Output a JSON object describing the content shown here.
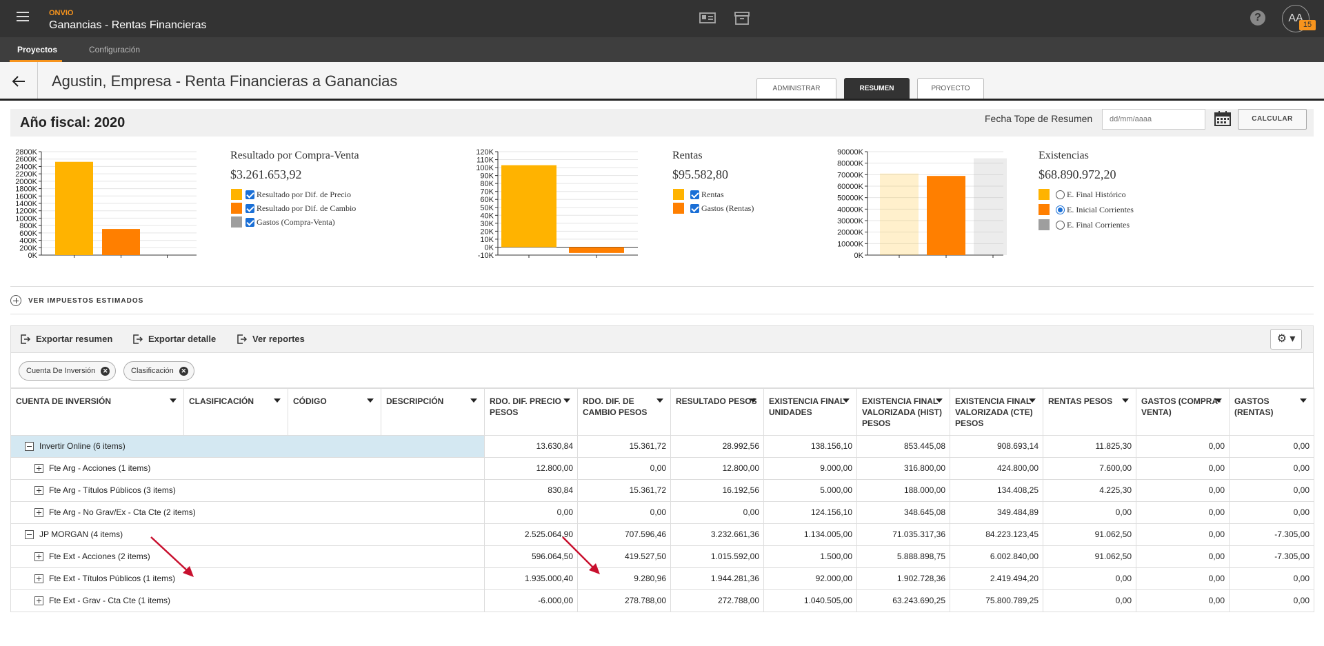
{
  "app": {
    "brand": "ONVIO",
    "title": "Ganancias - Rentas Financieras",
    "badge": "15",
    "avatar": "AA",
    "help": "?"
  },
  "nav": {
    "items": [
      "Proyectos",
      "Configuración"
    ]
  },
  "header": {
    "title": "Agustin, Empresa - Renta Financieras a Ganancias",
    "tabs": [
      "ADMINISTRAR",
      "RESUMEN",
      "PROYECTO"
    ],
    "active_tab": "RESUMEN"
  },
  "fiscal": {
    "label": "Año fiscal: 2020",
    "fecha_label": "Fecha Tope de Resumen",
    "fecha_placeholder": "dd/mm/aaaa",
    "calc": "CALCULAR"
  },
  "colors": {
    "yellow": "#FFB300",
    "orange": "#FF7F00",
    "gray": "#9E9E9E",
    "accent": "#F7941D",
    "group_bg": "#D4E8F2"
  },
  "chart_data": [
    {
      "type": "bar",
      "categories": [
        "Resultado por Dif. de Precio",
        "Resultado por Dif. de Cambio",
        "Gastos (Compra-Venta)"
      ],
      "values": [
        2525065,
        708000,
        0
      ],
      "ylim": [
        0,
        2800000
      ],
      "yticks": [
        "0K",
        "200K",
        "400K",
        "600K",
        "800K",
        "1000K",
        "1200K",
        "1400K",
        "1600K",
        "1800K",
        "2000K",
        "2200K",
        "2400K",
        "2600K",
        "2800K"
      ]
    },
    {
      "type": "bar",
      "categories": [
        "Rentas",
        "Gastos (Rentas)"
      ],
      "values": [
        103000,
        -7305
      ],
      "ylim": [
        -10000,
        120000
      ],
      "yticks": [
        "-10K",
        "0K",
        "10K",
        "20K",
        "30K",
        "40K",
        "50K",
        "60K",
        "70K",
        "80K",
        "90K",
        "100K",
        "110K",
        "120K"
      ]
    },
    {
      "type": "bar",
      "categories": [
        "E. Final Histórico",
        "E. Inicial Corrientes",
        "E. Final Corrientes"
      ],
      "values": [
        71000000,
        68900000,
        84200000
      ],
      "ylim": [
        0,
        90000000
      ],
      "yticks": [
        "0K",
        "10000K",
        "20000K",
        "30000K",
        "40000K",
        "50000K",
        "60000K",
        "70000K",
        "80000K",
        "90000K"
      ],
      "faded": [
        true,
        false,
        true
      ]
    }
  ],
  "summaries": [
    {
      "title": "Resultado por Compra-Venta",
      "value": "$3.261.653,92",
      "legend": [
        {
          "label": "Resultado por Dif. de Precio",
          "color": "#FFB300",
          "checked": true
        },
        {
          "label": "Resultado por Dif. de Cambio",
          "color": "#FF7F00",
          "checked": true
        },
        {
          "label": "Gastos (Compra-Venta)",
          "color": "#9E9E9E",
          "checked": true
        }
      ]
    },
    {
      "title": "Rentas",
      "value": "$95.582,80",
      "legend": [
        {
          "label": "Rentas",
          "color": "#FFB300",
          "checked": true
        },
        {
          "label": "Gastos (Rentas)",
          "color": "#FF7F00",
          "checked": true
        }
      ]
    },
    {
      "title": "Existencias",
      "value": "$68.890.972,20",
      "legend": [
        {
          "label": "E. Final Histórico",
          "color": "#FFB300",
          "selected": false
        },
        {
          "label": "E. Inicial Corrientes",
          "color": "#FF7F00",
          "selected": true
        },
        {
          "label": "E. Final Corrientes",
          "color": "#9E9E9E",
          "selected": false
        }
      ]
    }
  ],
  "impuestos": "VER IMPUESTOS ESTIMADOS",
  "toolbar": {
    "export_summary": "Exportar resumen",
    "export_detail": "Exportar detalle",
    "reports": "Ver reportes",
    "gear": "⚙ ▾"
  },
  "chips": [
    "Cuenta De Inversión",
    "Clasificación"
  ],
  "chip_close": "✕",
  "table": {
    "columns": [
      "CUENTA DE INVERSIÓN",
      "CLASIFICACIÓN",
      "CÓDIGO",
      "DESCRIPCIÓN",
      "RDO. DIF. PRECIO PESOS",
      "RDO. DIF. DE CAMBIO PESOS",
      "RESULTADO PESOS",
      "EXISTENCIA FINAL UNIDADES",
      "EXISTENCIA FINAL VALORIZADA (HIST) PESOS",
      "EXISTENCIA FINAL VALORIZADA (CTE) PESOS",
      "RENTAS PESOS",
      "GASTOS (COMPRA-VENTA)",
      "GASTOS (RENTAS)"
    ],
    "rows": [
      {
        "label": "Invertir Online (6 items)",
        "level": 0,
        "expanded": true,
        "values": [
          "13.630,84",
          "15.361,72",
          "28.992,56",
          "138.156,10",
          "853.445,08",
          "908.693,14",
          "11.825,30",
          "0,00",
          "0,00"
        ]
      },
      {
        "label": "Fte Arg - Acciones (1 items)",
        "level": 1,
        "expanded": false,
        "values": [
          "12.800,00",
          "0,00",
          "12.800,00",
          "9.000,00",
          "316.800,00",
          "424.800,00",
          "7.600,00",
          "0,00",
          "0,00"
        ]
      },
      {
        "label": "Fte Arg - Títulos Públicos (3 items)",
        "level": 1,
        "expanded": false,
        "values": [
          "830,84",
          "15.361,72",
          "16.192,56",
          "5.000,00",
          "188.000,00",
          "134.408,25",
          "4.225,30",
          "0,00",
          "0,00"
        ]
      },
      {
        "label": "Fte Arg - No Grav/Ex - Cta Cte (2 items)",
        "level": 1,
        "expanded": false,
        "values": [
          "0,00",
          "0,00",
          "0,00",
          "124.156,10",
          "348.645,08",
          "349.484,89",
          "0,00",
          "0,00",
          "0,00"
        ]
      },
      {
        "label": "JP MORGAN (4 items)",
        "level": 0,
        "expanded": true,
        "values": [
          "2.525.064,90",
          "707.596,46",
          "3.232.661,36",
          "1.134.005,00",
          "71.035.317,36",
          "84.223.123,45",
          "91.062,50",
          "0,00",
          "-7.305,00"
        ]
      },
      {
        "label": "Fte Ext - Acciones (2 items)",
        "level": 1,
        "expanded": false,
        "values": [
          "596.064,50",
          "419.527,50",
          "1.015.592,00",
          "1.500,00",
          "5.888.898,75",
          "6.002.840,00",
          "91.062,50",
          "0,00",
          "-7.305,00"
        ]
      },
      {
        "label": "Fte Ext - Títulos Públicos (1 items)",
        "level": 1,
        "expanded": false,
        "values": [
          "1.935.000,40",
          "9.280,96",
          "1.944.281,36",
          "92.000,00",
          "1.902.728,36",
          "2.419.494,20",
          "0,00",
          "0,00",
          "0,00"
        ]
      },
      {
        "label": "Fte Ext - Grav - Cta Cte (1 items)",
        "level": 1,
        "expanded": false,
        "values": [
          "-6.000,00",
          "278.788,00",
          "272.788,00",
          "1.040.505,00",
          "63.243.690,25",
          "75.800.789,25",
          "0,00",
          "0,00",
          "0,00"
        ]
      }
    ]
  }
}
